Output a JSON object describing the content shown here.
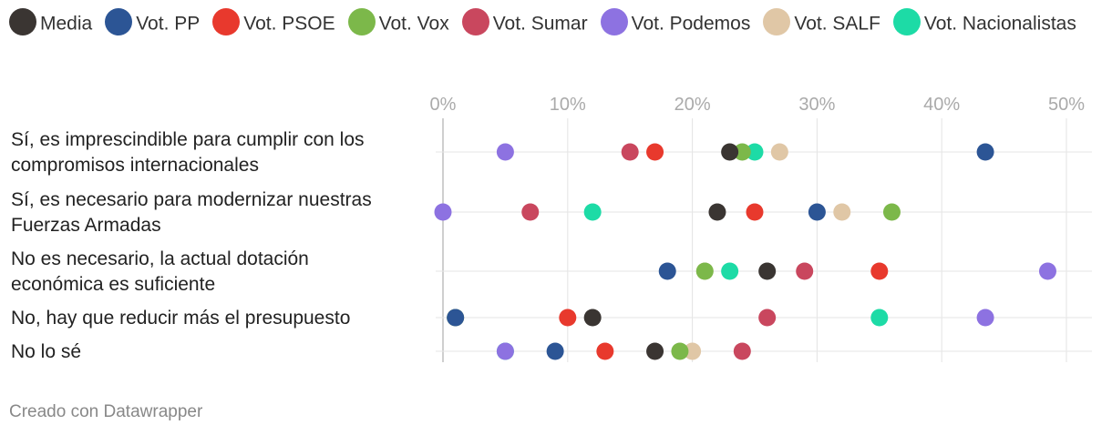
{
  "chart_data": {
    "type": "scatter",
    "title": "",
    "xlabel": "",
    "ylabel": "",
    "xlim": [
      0,
      50
    ],
    "x_ticks": [
      0,
      10,
      20,
      30,
      40,
      50
    ],
    "x_tick_labels": [
      "0%",
      "10%",
      "20%",
      "30%",
      "40%",
      "50%"
    ],
    "grid": true,
    "legend_position": "top",
    "categories": [
      [
        "Sí, es imprescindible para cumplir con los",
        "compromisos internacionales"
      ],
      [
        "Sí, es necesario para modernizar nuestras",
        "Fuerzas Armadas"
      ],
      [
        "No es necesario, la actual dotación",
        "económica es suficiente"
      ],
      [
        "No, hay que reducir más el presupuesto"
      ],
      [
        "No lo sé"
      ]
    ],
    "series": [
      {
        "name": "Media",
        "color": "#3a3532",
        "values": [
          23,
          22,
          26,
          12,
          17
        ]
      },
      {
        "name": "Vot. PP",
        "color": "#2c5595",
        "values": [
          43.5,
          30,
          18,
          1,
          9
        ]
      },
      {
        "name": "Vot. PSOE",
        "color": "#e8392d",
        "values": [
          17,
          25,
          35,
          10,
          13
        ]
      },
      {
        "name": "Vot. Vox",
        "color": "#7cb84a",
        "values": [
          24,
          36,
          21,
          1,
          19
        ]
      },
      {
        "name": "Vot. Sumar",
        "color": "#c9475e",
        "values": [
          15,
          7,
          29,
          26,
          24
        ]
      },
      {
        "name": "Vot. Podemos",
        "color": "#8d72e1",
        "values": [
          5,
          0,
          48.5,
          43.5,
          5
        ]
      },
      {
        "name": "Vot. SALF",
        "color": "#e0c7a6",
        "values": [
          27,
          32,
          21,
          1,
          20
        ]
      },
      {
        "name": "Vot. Nacionalistas",
        "color": "#1ddba6",
        "values": [
          25,
          12,
          23,
          35,
          5
        ]
      }
    ]
  },
  "credit": "Creado con Datawrapper"
}
